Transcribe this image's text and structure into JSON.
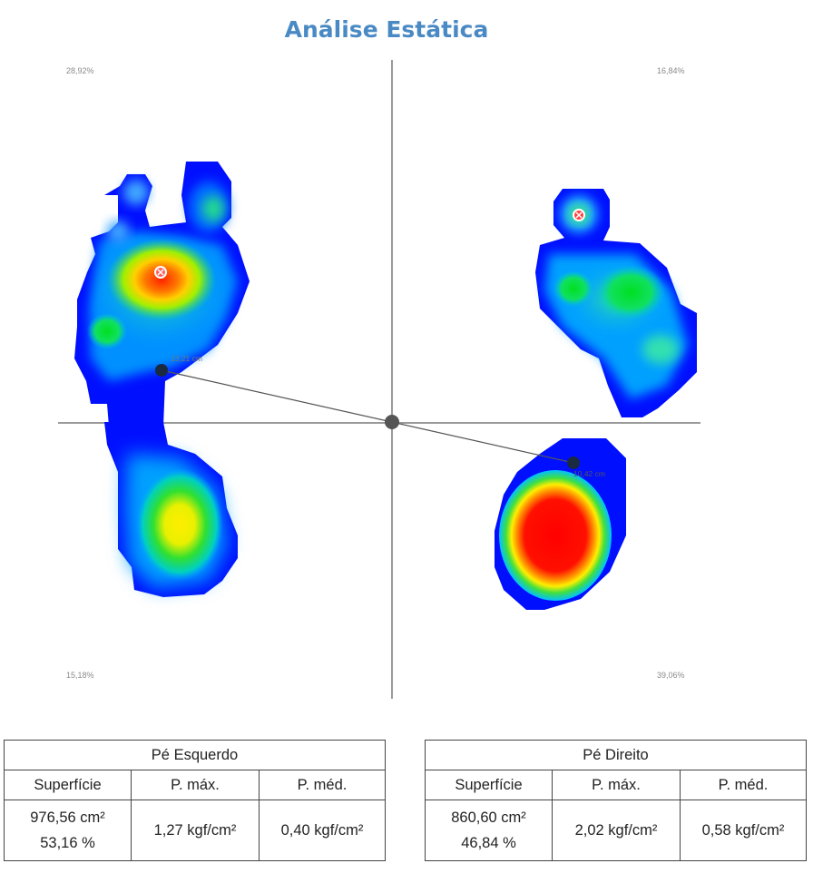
{
  "title": "Análise Estática",
  "quadrants": {
    "top_left": "28,92%",
    "top_right": "16,84%",
    "bottom_left": "15,18%",
    "bottom_right": "39,06%"
  },
  "markers": {
    "left_distance": "13,21 cm",
    "right_distance": "10,42 cm"
  },
  "colors": {
    "title": "#4a8ac4",
    "heatmap_low": "#0000ff",
    "heatmap_high": "#ff0000"
  },
  "left_foot": {
    "header": "Pé Esquerdo",
    "columns": [
      "Superfície",
      "P. máx.",
      "P. méd."
    ],
    "surface_area": "976,56 cm²",
    "surface_pct": "53,16 %",
    "p_max": "1,27 kgf/cm²",
    "p_med": "0,40 kgf/cm²"
  },
  "right_foot": {
    "header": "Pé Direito",
    "columns": [
      "Superfície",
      "P. máx.",
      "P. méd."
    ],
    "surface_area": "860,60 cm²",
    "surface_pct": "46,84 %",
    "p_max": "2,02 kgf/cm²",
    "p_med": "0,58 kgf/cm²"
  }
}
